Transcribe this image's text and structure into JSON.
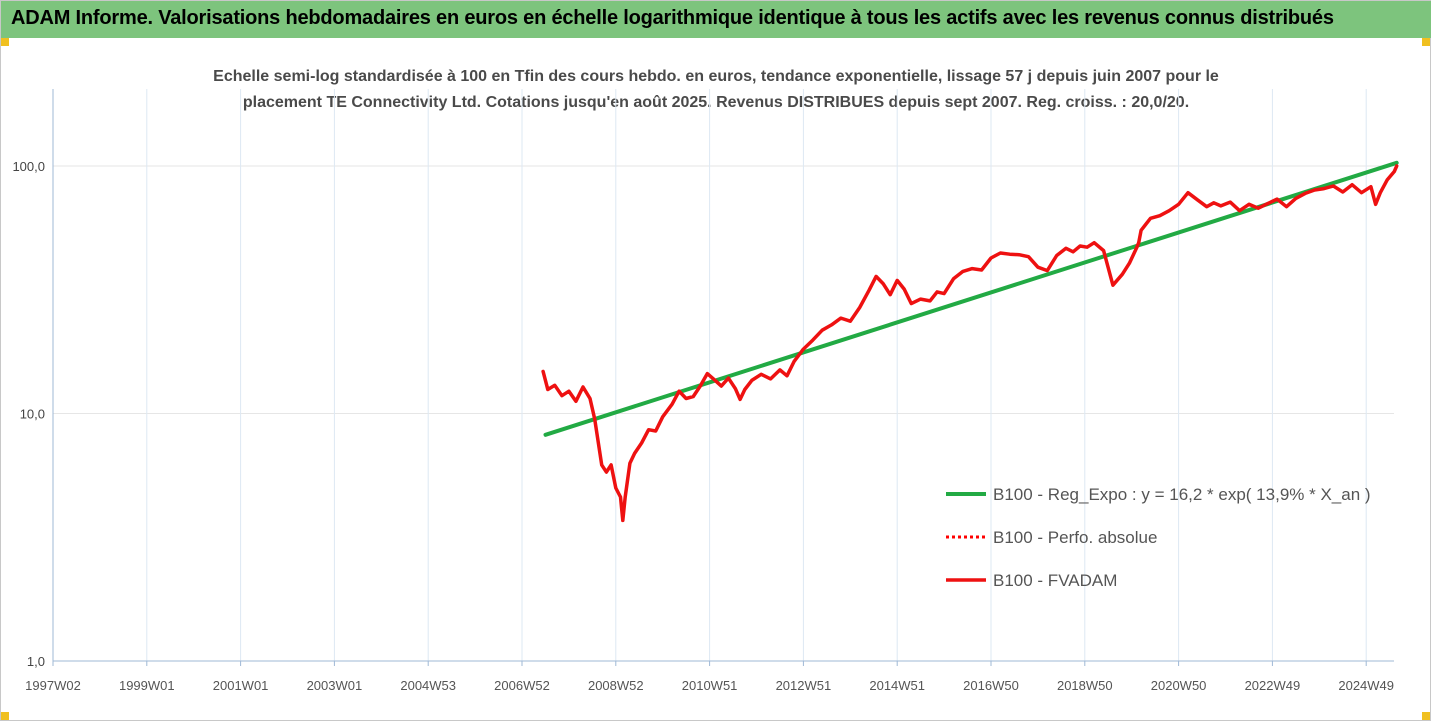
{
  "banner": {
    "title": "ADAM Informe. Valorisations hebdomadaires en euros en échelle logarithmique identique à tous les actifs avec les revenus connus distribués"
  },
  "chart_data": {
    "type": "line",
    "title_line1": "Echelle semi-log standardisée à 100 en Tfin des cours hebdo. en euros, tendance exponentielle, lissage 57 j depuis juin 2007 pour le",
    "title_line2": "placement TE Connectivity Ltd. Cotations jusqu'en août 2025. Revenus DISTRIBUES depuis sept 2007. Reg. croiss. : 20,0/20.",
    "y_scale": "log",
    "ylim": [
      1,
      200
    ],
    "y_ticks": [
      {
        "value": 1,
        "label": "1,0"
      },
      {
        "value": 10,
        "label": "10,0"
      },
      {
        "value": 100,
        "label": "100,0"
      }
    ],
    "xlim": [
      1997.0,
      2025.7
    ],
    "x_ticks": [
      {
        "x": 1997.0,
        "label": "1997W02"
      },
      {
        "x": 1999.0,
        "label": "1999W01"
      },
      {
        "x": 2001.0,
        "label": "2001W01"
      },
      {
        "x": 2003.0,
        "label": "2003W01"
      },
      {
        "x": 2005.0,
        "label": "2004W53"
      },
      {
        "x": 2007.0,
        "label": "2006W52"
      },
      {
        "x": 2009.0,
        "label": "2008W52"
      },
      {
        "x": 2011.0,
        "label": "2010W51"
      },
      {
        "x": 2013.0,
        "label": "2012W51"
      },
      {
        "x": 2015.0,
        "label": "2014W51"
      },
      {
        "x": 2017.0,
        "label": "2016W50"
      },
      {
        "x": 2019.0,
        "label": "2018W50"
      },
      {
        "x": 2021.0,
        "label": "2020W50"
      },
      {
        "x": 2023.0,
        "label": "2022W49"
      },
      {
        "x": 2025.0,
        "label": "2024W49"
      }
    ],
    "grid": "vertical",
    "legend_position": "right",
    "colors": {
      "trend": "#22aa44",
      "perf": "#ff0000",
      "fvadam": "#ee1111"
    },
    "series": [
      {
        "name": "B100 - Reg_Expo : y = 16,2 * exp( 13,9% *  X_an )",
        "style": "solid-green",
        "x": [
          2007.5,
          2025.65
        ],
        "y": [
          8.2,
          103
        ]
      },
      {
        "name": "B100 - Perfo. absolue",
        "style": "dotted-red",
        "x": [],
        "y": []
      },
      {
        "name": "B100 - FVADAM",
        "style": "solid-red",
        "x": [
          2007.45,
          2007.55,
          2007.7,
          2007.85,
          2008.0,
          2008.15,
          2008.3,
          2008.45,
          2008.55,
          2008.7,
          2008.8,
          2008.9,
          2009.0,
          2009.1,
          2009.15,
          2009.2,
          2009.3,
          2009.4,
          2009.55,
          2009.7,
          2009.85,
          2010.0,
          2010.2,
          2010.35,
          2010.5,
          2010.65,
          2010.8,
          2010.95,
          2011.1,
          2011.25,
          2011.4,
          2011.55,
          2011.65,
          2011.75,
          2011.9,
          2012.1,
          2012.3,
          2012.5,
          2012.65,
          2012.8,
          2013.0,
          2013.2,
          2013.4,
          2013.6,
          2013.8,
          2014.0,
          2014.2,
          2014.4,
          2014.55,
          2014.7,
          2014.85,
          2015.0,
          2015.15,
          2015.3,
          2015.5,
          2015.7,
          2015.85,
          2016.0,
          2016.2,
          2016.4,
          2016.6,
          2016.8,
          2017.0,
          2017.2,
          2017.4,
          2017.6,
          2017.8,
          2018.0,
          2018.2,
          2018.4,
          2018.6,
          2018.75,
          2018.9,
          2019.05,
          2019.2,
          2019.4,
          2019.6,
          2019.8,
          2019.95,
          2020.1,
          2020.15,
          2020.2,
          2020.4,
          2020.6,
          2020.8,
          2021.0,
          2021.2,
          2021.4,
          2021.6,
          2021.75,
          2021.9,
          2022.1,
          2022.3,
          2022.5,
          2022.7,
          2022.9,
          2023.1,
          2023.3,
          2023.5,
          2023.7,
          2023.9,
          2024.1,
          2024.3,
          2024.5,
          2024.7,
          2024.9,
          2025.1,
          2025.2,
          2025.3,
          2025.45,
          2025.6,
          2025.65
        ],
        "y": [
          14.8,
          12.5,
          13.0,
          11.8,
          12.3,
          11.2,
          12.8,
          11.5,
          9.5,
          6.2,
          5.8,
          6.2,
          5.0,
          4.6,
          3.7,
          4.6,
          6.3,
          6.9,
          7.6,
          8.6,
          8.5,
          9.7,
          10.9,
          12.3,
          11.5,
          11.7,
          12.9,
          14.5,
          13.7,
          12.9,
          13.9,
          12.6,
          11.4,
          12.5,
          13.6,
          14.4,
          13.8,
          15.0,
          14.2,
          16.2,
          18.2,
          19.8,
          21.7,
          22.8,
          24.3,
          23.6,
          26.8,
          31.5,
          35.8,
          33.5,
          30.2,
          34.5,
          31.8,
          27.8,
          29.0,
          28.5,
          31.0,
          30.5,
          35.0,
          37.5,
          38.5,
          38.0,
          42.5,
          44.5,
          44.0,
          43.8,
          43.0,
          39.0,
          37.8,
          43.5,
          46.5,
          45.0,
          47.5,
          47.0,
          49.0,
          45.5,
          33.0,
          36.5,
          40.5,
          46.5,
          49.0,
          55.0,
          61.5,
          63.0,
          66.0,
          70.0,
          78.0,
          73.0,
          68.5,
          71.0,
          69.0,
          71.5,
          66.0,
          70.0,
          67.5,
          70.5,
          73.5,
          68.5,
          74.0,
          77.5,
          80.0,
          81.0,
          83.0,
          78.5,
          84.0,
          78.0,
          82.5,
          70.0,
          78.0,
          88.0,
          95.0,
          100.0
        ]
      }
    ]
  }
}
